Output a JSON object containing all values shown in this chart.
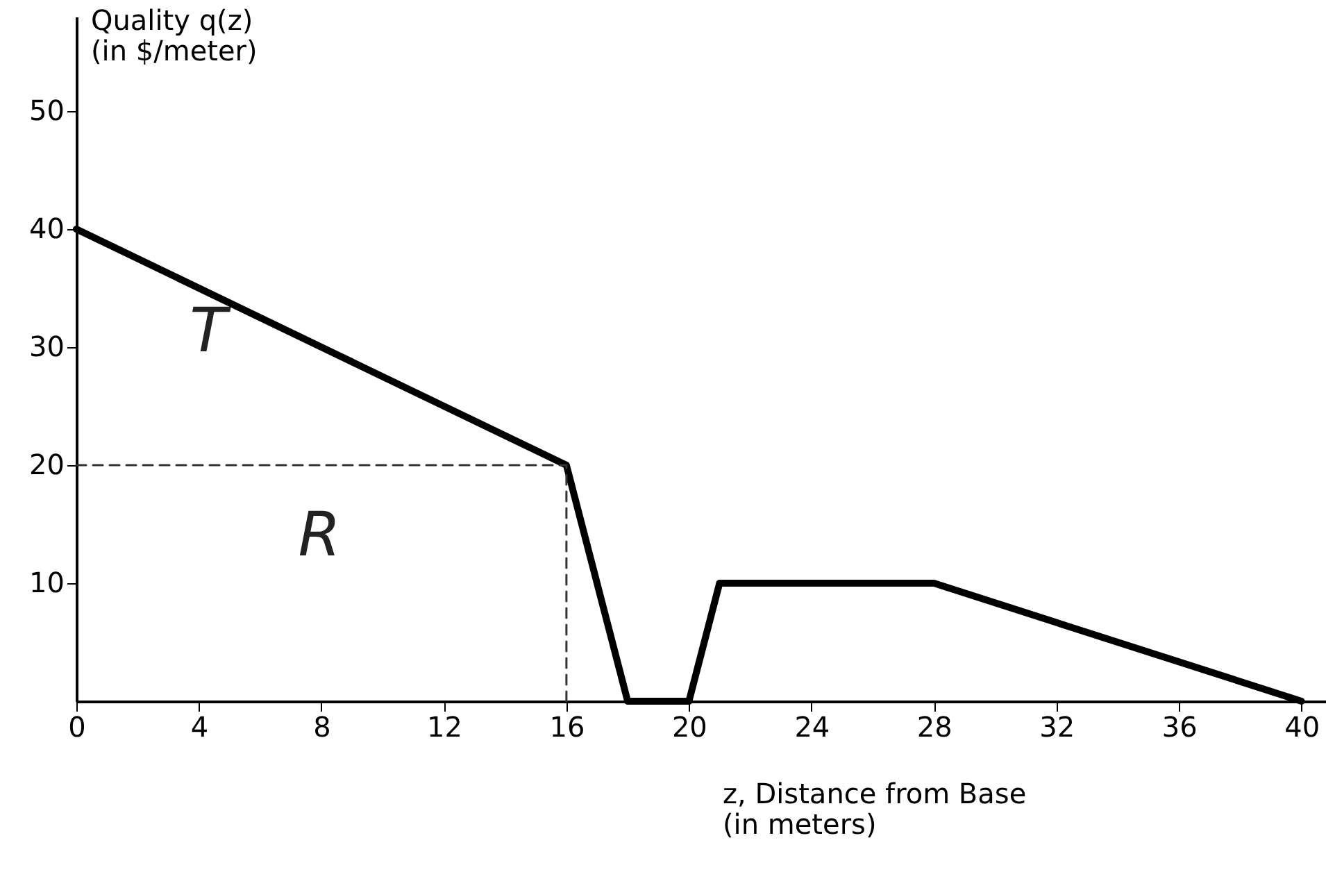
{
  "chart_data": {
    "type": "line",
    "xlabel": "z, Distance from Base\n(in meters)",
    "ylabel": "Quality q(z)\n(in $/meter)",
    "xlim": [
      0,
      40.8
    ],
    "ylim": [
      0,
      58
    ],
    "xticks": [
      0,
      4,
      8,
      12,
      16,
      20,
      24,
      28,
      32,
      36,
      40
    ],
    "yticks": [
      10,
      20,
      30,
      40,
      50
    ],
    "grid": false,
    "marker": "none",
    "series": [
      {
        "color": "#000000",
        "line_style": "solid",
        "x": [
          0,
          16,
          18,
          20,
          21,
          28,
          40
        ],
        "values": [
          40,
          20,
          0,
          0,
          10,
          10,
          0
        ]
      },
      {
        "color": "#333333",
        "line_style": "dashed",
        "x": [
          0,
          16,
          16
        ],
        "values": [
          20,
          20,
          0
        ]
      }
    ],
    "annotations": [
      "T",
      "R"
    ]
  }
}
